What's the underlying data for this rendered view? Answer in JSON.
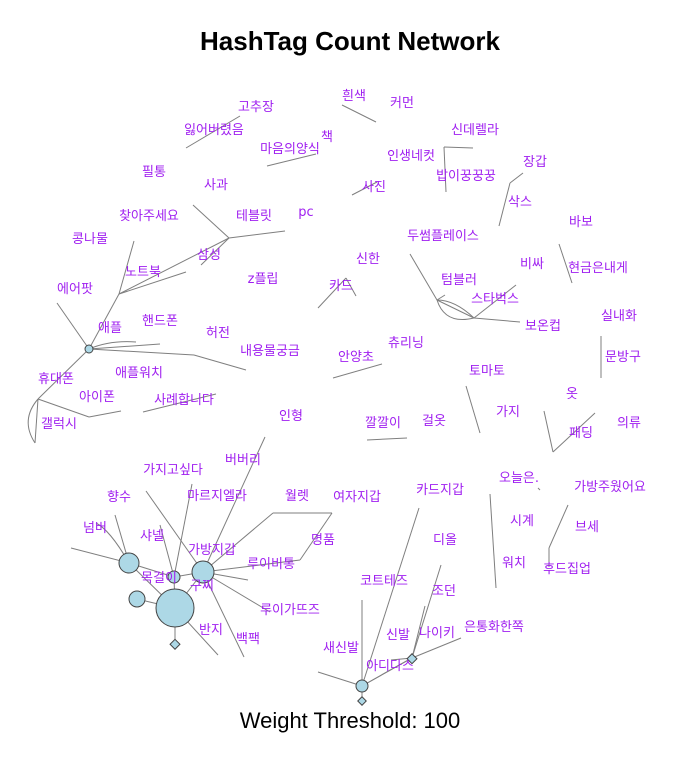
{
  "title": "HashTag Count Network",
  "footer": "Weight Threshold: 100",
  "colors": {
    "label": "#a020f0",
    "node_fill": "#add8e6",
    "edge": "#7f7f7f"
  },
  "labels": [
    "흰색",
    "커먼",
    "고추장",
    "잃어버렸음",
    "책",
    "마음의양식",
    "신데렐라",
    "인생네컷",
    "장갑",
    "필통",
    "밥이꿍꿍꿍",
    "사과",
    "사진",
    "삭스",
    "찾아주세요",
    "테블릿",
    "pc",
    "바보",
    "콩나물",
    "두썸플레이스",
    "노트북",
    "삼성",
    "z플립",
    "신한",
    "비싸",
    "현금은내게",
    "텀블러",
    "에어팟",
    "카드",
    "스타벅스",
    "실내화",
    "핸드폰",
    "애플",
    "허전",
    "내용물궁금",
    "츄리닝",
    "보온컵",
    "문방구",
    "안양초",
    "애플워치",
    "휴대폰",
    "토마토",
    "아이폰",
    "사례합니다",
    "옷",
    "인형",
    "깔깔이",
    "가지",
    "걸옷",
    "의류",
    "갤럭시",
    "패딩",
    "버버리",
    "가지고싶다",
    "오늘은.",
    "마르지엘라",
    "카드지갑",
    "가방주웠어요",
    "월렛",
    "여자지갑",
    "향수",
    "넘버",
    "시계",
    "샤넬",
    "가방지갑",
    "명품",
    "디올",
    "루이비통",
    "목걸이",
    "워치",
    "후드집업",
    "코트테즈",
    "구찌",
    "조던",
    "루이가뜨즈",
    "반지",
    "신발",
    "나이키",
    "은통화한쪽",
    "백팩",
    "새신발",
    "아디다스",
    "브세"
  ],
  "label_placements": [
    [
      "흰색",
      354,
      100
    ],
    [
      "커먼",
      402,
      107
    ],
    [
      "고추장",
      256,
      111
    ],
    [
      "잃어버렸음",
      214,
      134
    ],
    [
      "책",
      327,
      141
    ],
    [
      "마음의양식",
      290,
      153
    ],
    [
      "신데렐라",
      475,
      134
    ],
    [
      "인생네컷",
      411,
      160
    ],
    [
      "장갑",
      535,
      166
    ],
    [
      "필통",
      154,
      176
    ],
    [
      "밥이꿍꿍꿍",
      466,
      180
    ],
    [
      "사과",
      216,
      189
    ],
    [
      "사진",
      374,
      191
    ],
    [
      "삭스",
      520,
      206
    ],
    [
      "찾아주세요",
      149,
      220
    ],
    [
      "테블릿",
      254,
      220
    ],
    [
      "pc",
      306,
      216
    ],
    [
      "바보",
      581,
      226
    ],
    [
      "콩나물",
      90,
      243
    ],
    [
      "두썸플레이스",
      443,
      240
    ],
    [
      "노트북",
      143,
      276
    ],
    [
      "삼성",
      209,
      259
    ],
    [
      "z플립",
      263,
      283
    ],
    [
      "신한",
      368,
      263
    ],
    [
      "비싸",
      532,
      268
    ],
    [
      "현금은내게",
      598,
      272
    ],
    [
      "텀블러",
      459,
      284
    ],
    [
      "에어팟",
      75,
      293
    ],
    [
      "카드",
      341,
      290
    ],
    [
      "스타벅스",
      495,
      303
    ],
    [
      "실내화",
      619,
      320
    ],
    [
      "핸드폰",
      160,
      325
    ],
    [
      "애플",
      110,
      332
    ],
    [
      "허전",
      218,
      337
    ],
    [
      "내용물궁금",
      270,
      355
    ],
    [
      "츄리닝",
      406,
      347
    ],
    [
      "보온컵",
      543,
      330
    ],
    [
      "문방구",
      623,
      361
    ],
    [
      "안양초",
      356,
      361
    ],
    [
      "애플워치",
      139,
      377
    ],
    [
      "휴대폰",
      56,
      383
    ],
    [
      "토마토",
      487,
      375
    ],
    [
      "아이폰",
      97,
      401
    ],
    [
      "사례합니다",
      184,
      404
    ],
    [
      "옷",
      572,
      398
    ],
    [
      "인형",
      291,
      420
    ],
    [
      "깔깔이",
      383,
      427
    ],
    [
      "가지",
      508,
      416
    ],
    [
      "걸옷",
      434,
      425
    ],
    [
      "의류",
      629,
      427
    ],
    [
      "갤럭시",
      59,
      428
    ],
    [
      "패딩",
      581,
      437
    ],
    [
      "버버리",
      243,
      464
    ],
    [
      "가지고싶다",
      173,
      474
    ],
    [
      "오늘은.",
      519,
      482
    ],
    [
      "마르지엘라",
      217,
      500
    ],
    [
      "카드지갑",
      440,
      494
    ],
    [
      "가방주웠어요",
      610,
      491
    ],
    [
      "월렛",
      297,
      500
    ],
    [
      "여자지갑",
      357,
      501
    ],
    [
      "향수",
      119,
      501
    ],
    [
      "넘버",
      95,
      532
    ],
    [
      "시계",
      522,
      525
    ],
    [
      "샤넬",
      152,
      540
    ],
    [
      "가방지갑",
      212,
      554
    ],
    [
      "명품",
      323,
      544
    ],
    [
      "디올",
      445,
      544
    ],
    [
      "루이비통",
      271,
      568
    ],
    [
      "목걸이",
      159,
      582
    ],
    [
      "워치",
      514,
      567
    ],
    [
      "후드집업",
      567,
      573
    ],
    [
      "코트테즈",
      384,
      585
    ],
    [
      "구찌",
      202,
      590
    ],
    [
      "조던",
      444,
      595
    ],
    [
      "루이가뜨즈",
      290,
      614
    ],
    [
      "반지",
      211,
      634
    ],
    [
      "신발",
      398,
      639
    ],
    [
      "나이키",
      437,
      637
    ],
    [
      "은통화한쪽",
      494,
      631
    ],
    [
      "백팩",
      248,
      643
    ],
    [
      "새신발",
      341,
      652
    ],
    [
      "아디다스",
      390,
      670
    ],
    [
      "브세",
      587,
      531
    ]
  ]
}
